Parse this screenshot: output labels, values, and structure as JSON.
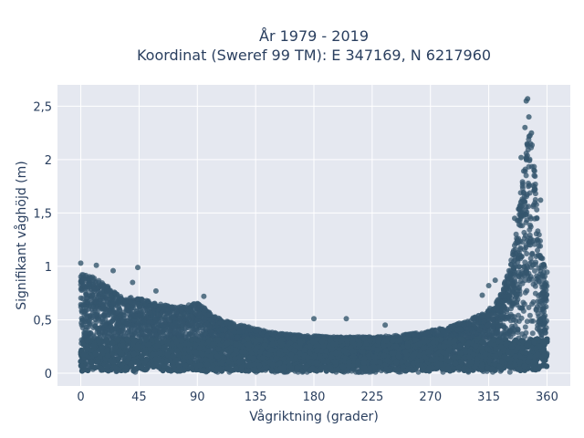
{
  "chart_data": {
    "type": "scatter",
    "title_line1": "År 1979 - 2019",
    "title_line2": "Koordinat (Sweref 99 TM): E 347169, N 6217960",
    "xlabel": "Vågriktning (grader)",
    "ylabel": "Signifikant våghöjd (m)",
    "xlim": [
      -18,
      378
    ],
    "ylim": [
      -0.12,
      2.7
    ],
    "x_ticks": [
      0,
      45,
      90,
      135,
      180,
      225,
      270,
      315,
      360
    ],
    "x_tick_labels": [
      "0",
      "45",
      "90",
      "135",
      "180",
      "225",
      "270",
      "315",
      "360"
    ],
    "y_ticks": [
      0,
      0.5,
      1,
      1.5,
      2,
      2.5
    ],
    "y_tick_labels": [
      "0",
      "0,5",
      "1",
      "1,5",
      "2",
      "2,5"
    ],
    "grid": true,
    "marker_color": "#34566d",
    "plot_bg": "#e5e8f0",
    "envelope": {
      "x": [
        0,
        10,
        20,
        30,
        45,
        60,
        75,
        90,
        105,
        120,
        135,
        150,
        165,
        180,
        195,
        210,
        225,
        240,
        255,
        270,
        285,
        300,
        310,
        320,
        325,
        330,
        335,
        338,
        341,
        344,
        347,
        350,
        353,
        356,
        360
      ],
      "y_max": [
        0.95,
        0.9,
        0.82,
        0.72,
        0.7,
        0.65,
        0.62,
        0.66,
        0.52,
        0.46,
        0.42,
        0.38,
        0.36,
        0.35,
        0.34,
        0.34,
        0.34,
        0.35,
        0.37,
        0.4,
        0.44,
        0.5,
        0.56,
        0.64,
        0.76,
        0.95,
        1.2,
        1.55,
        1.85,
        2.15,
        2.3,
        2.0,
        1.45,
        1.1,
        0.95
      ]
    },
    "outliers": [
      {
        "x": 0,
        "y": 1.03
      },
      {
        "x": 12,
        "y": 1.01
      },
      {
        "x": 25,
        "y": 0.96
      },
      {
        "x": 40,
        "y": 0.85
      },
      {
        "x": 44,
        "y": 0.99
      },
      {
        "x": 58,
        "y": 0.77
      },
      {
        "x": 95,
        "y": 0.72
      },
      {
        "x": 180,
        "y": 0.51
      },
      {
        "x": 205,
        "y": 0.51
      },
      {
        "x": 235,
        "y": 0.45
      },
      {
        "x": 310,
        "y": 0.73
      },
      {
        "x": 315,
        "y": 0.82
      },
      {
        "x": 320,
        "y": 0.87
      },
      {
        "x": 335,
        "y": 1.45
      },
      {
        "x": 340,
        "y": 2.02
      },
      {
        "x": 343,
        "y": 2.3
      },
      {
        "x": 344,
        "y": 2.55
      },
      {
        "x": 345,
        "y": 2.57
      },
      {
        "x": 346,
        "y": 2.4
      },
      {
        "x": 348,
        "y": 2.25
      },
      {
        "x": 350,
        "y": 1.9
      },
      {
        "x": 355,
        "y": 1.62
      }
    ]
  }
}
